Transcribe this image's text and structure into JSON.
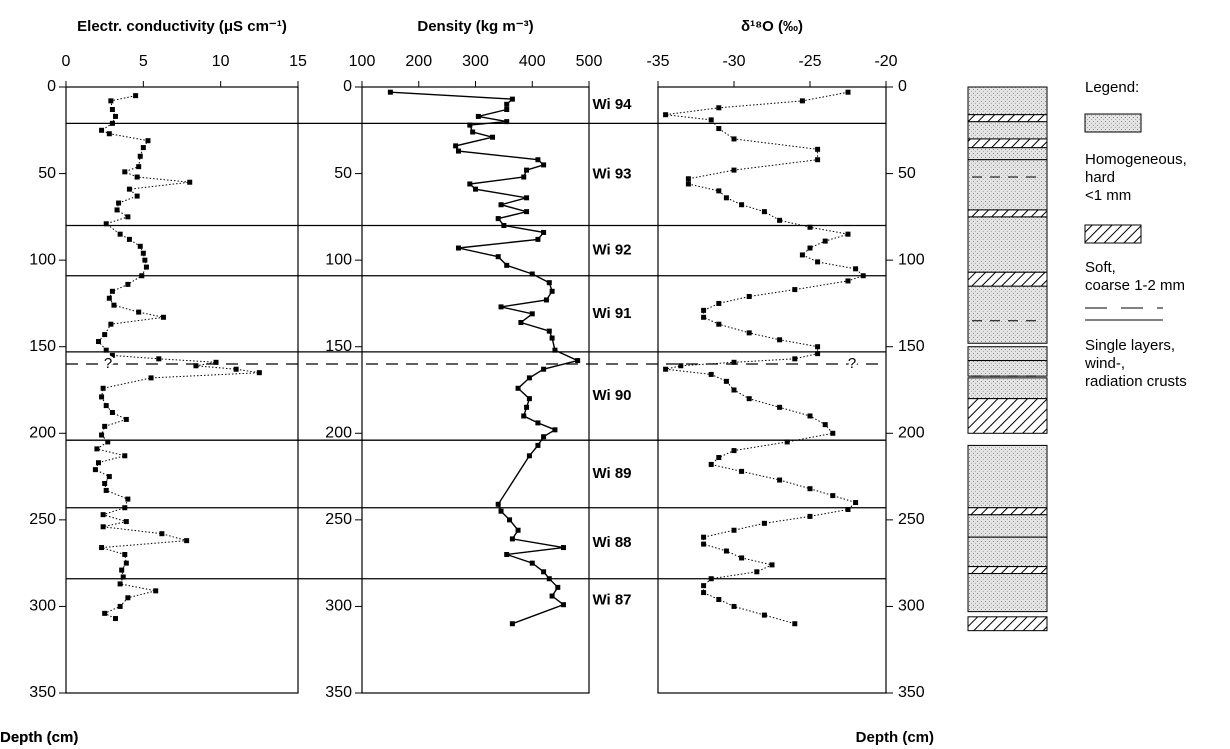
{
  "chart_data": [
    {
      "type": "line",
      "title": "Electr. conductivity (μS cm⁻¹)",
      "ylabel": "Depth (cm)",
      "yaxis_side": "left",
      "line_style": "dotted",
      "color": "#000000",
      "xlim": [
        0,
        15
      ],
      "xticks": [
        0,
        5,
        10,
        15
      ],
      "ylim": [
        0,
        350
      ],
      "yticks": [
        0,
        50,
        100,
        150,
        200,
        250,
        300,
        350
      ],
      "y_inverted": true,
      "x": [
        4.5,
        2.9,
        3.0,
        3.2,
        3.0,
        2.3,
        2.8,
        5.3,
        5.0,
        4.8,
        4.7,
        3.8,
        4.6,
        8.0,
        4.1,
        4.6,
        3.4,
        3.3,
        4.0,
        2.6,
        3.5,
        4.1,
        4.8,
        5.0,
        5.1,
        5.2,
        4.9,
        4.0,
        3.0,
        2.8,
        3.1,
        4.7,
        6.3,
        2.9,
        2.5,
        2.1,
        2.6,
        3.0,
        6.0,
        9.7,
        8.4,
        11.0,
        12.5,
        5.5,
        2.4,
        2.3,
        2.6,
        3.0,
        3.9,
        2.5,
        2.3,
        2.7,
        2.0,
        3.8,
        2.1,
        1.9,
        2.8,
        2.5,
        2.6,
        4.0,
        3.8,
        2.4,
        3.9,
        2.4,
        6.2,
        7.8,
        2.3,
        3.8,
        3.9,
        3.6,
        3.7,
        3.5,
        5.8,
        4.0,
        3.5,
        2.5,
        3.2
      ],
      "y": [
        5,
        8,
        13,
        17,
        21,
        25,
        27,
        31,
        35,
        40,
        46,
        49,
        52,
        55,
        59,
        63,
        67,
        71,
        75,
        79,
        85,
        88,
        92,
        96,
        100,
        104,
        109,
        114,
        118,
        122,
        126,
        130,
        133,
        137,
        143,
        147,
        152,
        155,
        157,
        159,
        161,
        163,
        165,
        168,
        174,
        179,
        184,
        188,
        192,
        196,
        201,
        205,
        209,
        213,
        217,
        221,
        225,
        229,
        233,
        238,
        243,
        247,
        251,
        254,
        258,
        262,
        266,
        270,
        275,
        279,
        283,
        287,
        291,
        295,
        300,
        304,
        307
      ]
    },
    {
      "type": "line",
      "title": "Density (kg m⁻³)",
      "ylabel": "Depth (cm)",
      "yaxis_side": "left",
      "line_style": "solid",
      "color": "#000000",
      "xlim": [
        100,
        500
      ],
      "xticks": [
        100,
        200,
        300,
        400,
        500
      ],
      "ylim": [
        0,
        350
      ],
      "yticks": [
        0,
        50,
        100,
        150,
        200,
        250,
        300,
        350
      ],
      "y_inverted": true,
      "x": [
        150,
        365,
        355,
        355,
        305,
        355,
        290,
        295,
        330,
        265,
        270,
        410,
        420,
        390,
        385,
        290,
        300,
        390,
        345,
        390,
        340,
        350,
        420,
        410,
        270,
        340,
        355,
        400,
        430,
        435,
        425,
        345,
        400,
        380,
        430,
        435,
        440,
        480,
        420,
        395,
        375,
        395,
        390,
        385,
        410,
        440,
        420,
        410,
        395,
        340,
        345,
        360,
        375,
        365,
        455,
        355,
        400,
        420,
        430,
        445,
        435,
        455,
        365
      ],
      "y": [
        3,
        7,
        10,
        13,
        17,
        20,
        22,
        26,
        29,
        34,
        37,
        42,
        45,
        48,
        52,
        56,
        59,
        64,
        68,
        72,
        76,
        80,
        84,
        88,
        93,
        98,
        103,
        108,
        113,
        118,
        123,
        127,
        131,
        136,
        141,
        145,
        152,
        158,
        163,
        168,
        174,
        180,
        185,
        190,
        194,
        198,
        202,
        207,
        213,
        241,
        245,
        250,
        256,
        261,
        266,
        270,
        275,
        280,
        284,
        289,
        294,
        299,
        310
      ]
    },
    {
      "type": "line",
      "title": "δ¹⁸O (‰)",
      "ylabel": "Depth (cm)",
      "yaxis_side": "right",
      "line_style": "dotted",
      "color": "#000000",
      "xlim": [
        -35,
        -20
      ],
      "xticks": [
        -35,
        -30,
        -25,
        -20
      ],
      "ylim": [
        0,
        350
      ],
      "yticks": [
        0,
        50,
        100,
        150,
        200,
        250,
        300,
        350
      ],
      "y_inverted": true,
      "x": [
        -22.5,
        -25.5,
        -31,
        -34.5,
        -31.5,
        -31,
        -30,
        -24.5,
        -24.5,
        -30,
        -33,
        -33,
        -31,
        -30.5,
        -29.5,
        -28,
        -27,
        -25,
        -22.5,
        -24,
        -25,
        -25.5,
        -24.5,
        -22,
        -21.5,
        -22.5,
        -26,
        -29,
        -31,
        -32,
        -32,
        -31,
        -29,
        -27,
        -24.5,
        -24.5,
        -26,
        -30,
        -33.5,
        -34.5,
        -31.5,
        -30.5,
        -30,
        -29,
        -27,
        -25,
        -24,
        -23.5,
        -26.5,
        -30,
        -31,
        -31.5,
        -29.5,
        -27,
        -25,
        -23.5,
        -22,
        -22.5,
        -25,
        -28,
        -30,
        -32,
        -32,
        -30.5,
        -29.5,
        -27.5,
        -28.5,
        -31.5,
        -32,
        -32,
        -31,
        -30,
        -28,
        -26
      ],
      "y": [
        3,
        8,
        12,
        16,
        19,
        24,
        30,
        36,
        42,
        48,
        53,
        56,
        60,
        64,
        68,
        72,
        77,
        81,
        85,
        89,
        93,
        97,
        101,
        105,
        109,
        112,
        117,
        121,
        125,
        129,
        133,
        137,
        142,
        146,
        150,
        154,
        157,
        159,
        161,
        163,
        166,
        170,
        175,
        180,
        185,
        190,
        195,
        200,
        205,
        210,
        214,
        218,
        222,
        227,
        232,
        236,
        240,
        244,
        248,
        252,
        256,
        260,
        264,
        268,
        272,
        276,
        280,
        284,
        288,
        292,
        296,
        300,
        305,
        310
      ]
    }
  ],
  "annual_layers": {
    "labels": [
      "Wi 94",
      "Wi 93",
      "Wi 92",
      "Wi 91",
      "Wi 90",
      "Wi 89",
      "Wi 88",
      "Wi 87"
    ],
    "boundaries": [
      21,
      80,
      109,
      153,
      204,
      243,
      284
    ],
    "uncertain_depth": 160,
    "uncertain_label": "?"
  },
  "stratigraphy": {
    "homogeneous": [
      [
        0,
        16
      ],
      [
        20,
        30
      ],
      [
        35,
        42
      ],
      [
        42,
        71
      ],
      [
        75,
        107
      ],
      [
        115,
        148
      ],
      [
        150,
        158
      ],
      [
        158,
        167
      ],
      [
        168,
        180
      ],
      [
        207,
        243
      ],
      [
        247,
        260
      ],
      [
        260,
        277
      ],
      [
        281,
        303
      ]
    ],
    "soft": [
      [
        16,
        20
      ],
      [
        30,
        35
      ],
      [
        71,
        75
      ],
      [
        107,
        115
      ],
      [
        180,
        200
      ],
      [
        243,
        247
      ],
      [
        277,
        281
      ],
      [
        306,
        314
      ]
    ],
    "crusts": [
      52,
      135,
      167
    ]
  },
  "legend": {
    "title": "Legend:",
    "homogeneous": [
      "Homogeneous,",
      "hard",
      "<1 mm"
    ],
    "soft": [
      "Soft,",
      "coarse 1-2  mm"
    ],
    "crusts": [
      "Single layers,",
      "wind-,",
      "radiation crusts"
    ]
  }
}
